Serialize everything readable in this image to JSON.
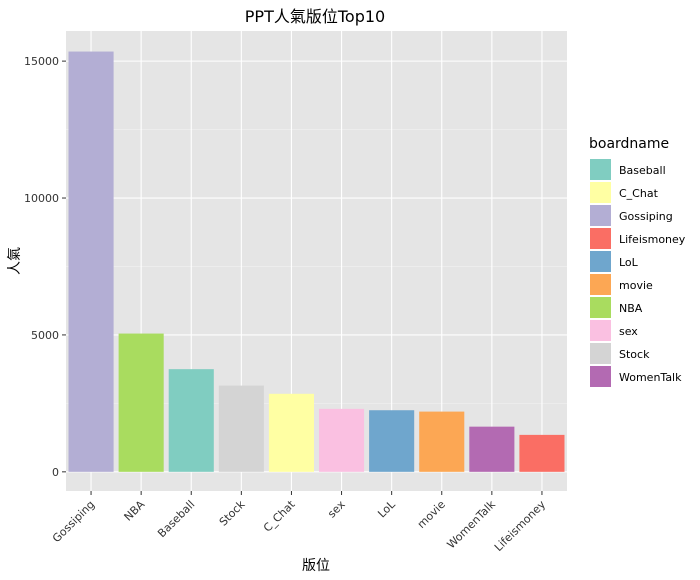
{
  "chart_data": {
    "type": "bar",
    "title": "PPT人氣版位Top10",
    "xlabel": "版位",
    "ylabel": "人氣",
    "categories": [
      "Gossiping",
      "NBA",
      "Baseball",
      "Stock",
      "C_Chat",
      "sex",
      "LoL",
      "movie",
      "WomenTalk",
      "Lifeismoney"
    ],
    "values": [
      15350,
      5050,
      3750,
      3150,
      2850,
      2300,
      2250,
      2200,
      1650,
      1350
    ],
    "colors": [
      "#b3aed4",
      "#a9dc5f",
      "#80cdc1",
      "#d4d4d4",
      "#ffffa3",
      "#fac0e1",
      "#6fa6cd",
      "#fca754",
      "#b36ab2",
      "#fa6e64"
    ],
    "ylim": [
      -700,
      16100
    ],
    "yticks": [
      0,
      5000,
      10000,
      15000
    ],
    "legend": {
      "title": "boardname",
      "position": "right",
      "items": [
        {
          "label": "Baseball",
          "color": "#80cdc1"
        },
        {
          "label": "C_Chat",
          "color": "#ffffa3"
        },
        {
          "label": "Gossiping",
          "color": "#b3aed4"
        },
        {
          "label": "Lifeismoney",
          "color": "#fa6e64"
        },
        {
          "label": "LoL",
          "color": "#6fa6cd"
        },
        {
          "label": "movie",
          "color": "#fca754"
        },
        {
          "label": "NBA",
          "color": "#a9dc5f"
        },
        {
          "label": "sex",
          "color": "#fac0e1"
        },
        {
          "label": "Stock",
          "color": "#d4d4d4"
        },
        {
          "label": "WomenTalk",
          "color": "#b36ab2"
        }
      ]
    },
    "grid": true,
    "panel_background": "#e5e5e5"
  }
}
